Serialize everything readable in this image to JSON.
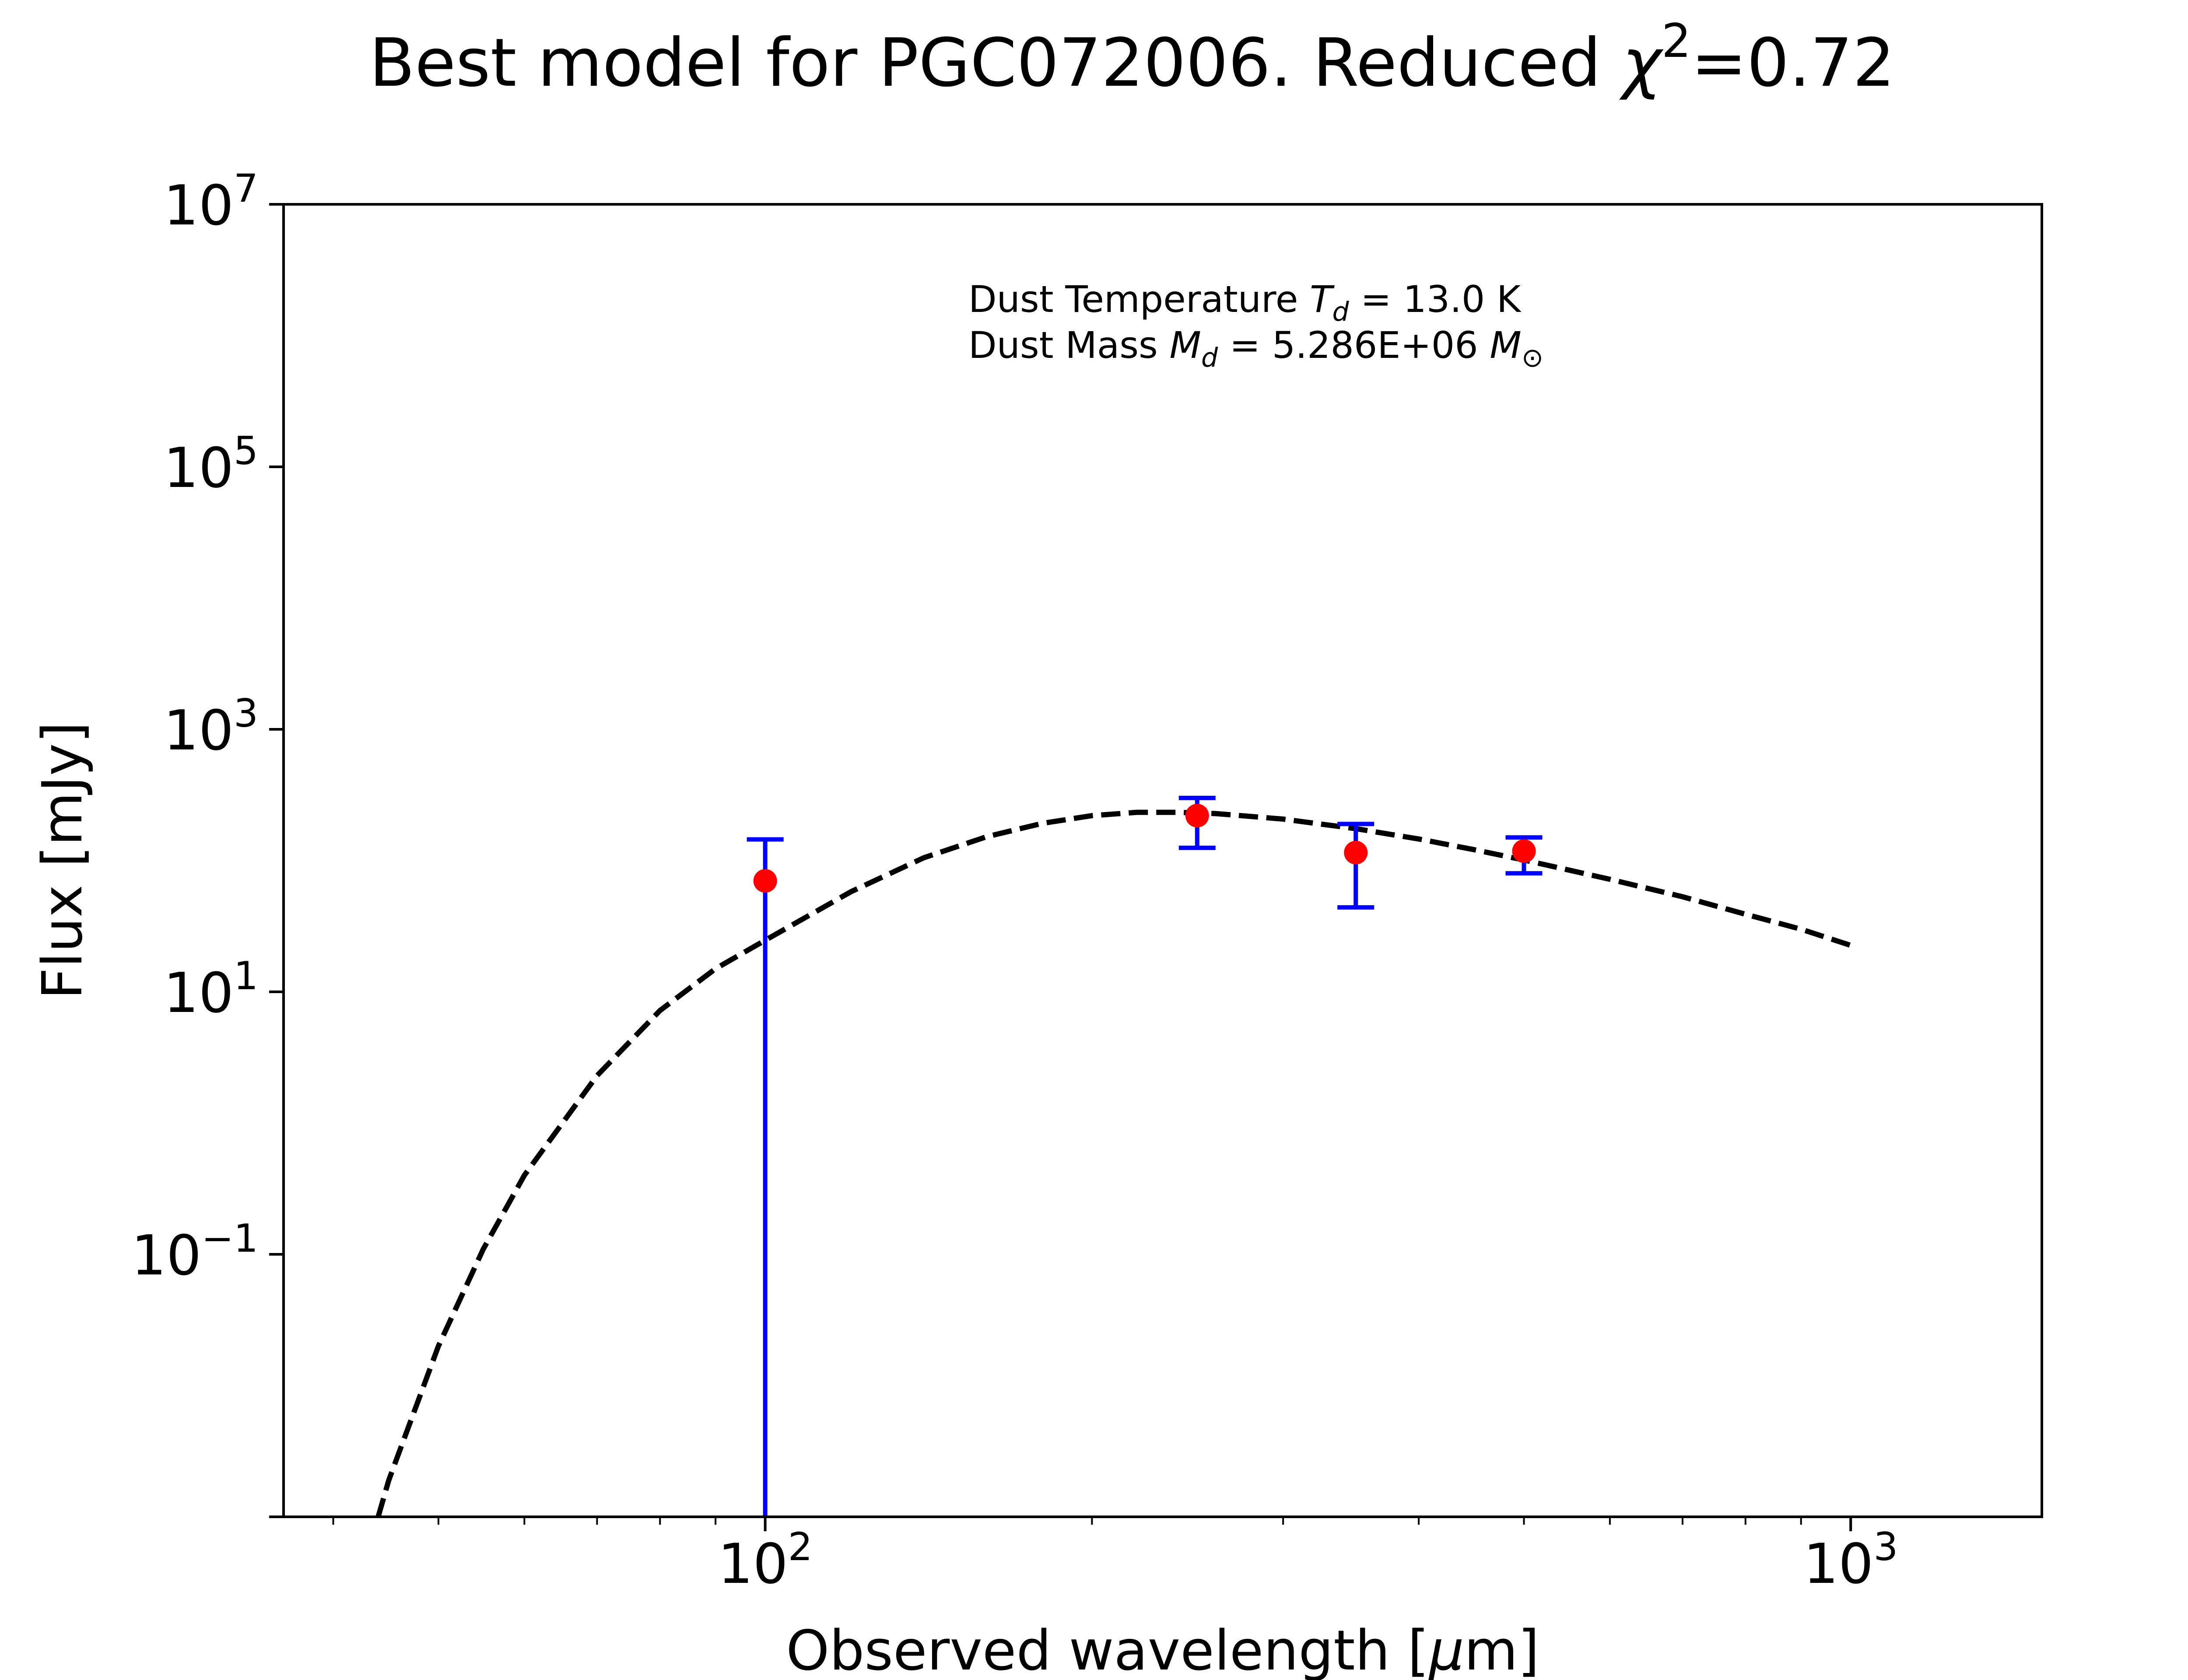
{
  "chart_data": {
    "type": "scatter",
    "title": {
      "prefix": "Best model for PGC072006. Reduced ",
      "chi_symbol": "χ",
      "chi_exponent": "2",
      "suffix": "=0.72"
    },
    "xlabel": {
      "prefix": "Observed wavelength [",
      "mu": "μ",
      "suffix": "m]"
    },
    "ylabel": "Flux [mJy]",
    "x_scale": "log",
    "y_scale": "log",
    "xlim": [
      36,
      1500
    ],
    "ylim": [
      0.001,
      10000000
    ],
    "x_ticks": [
      {
        "value": 100,
        "base": "10",
        "exp": "2"
      },
      {
        "value": 1000,
        "base": "10",
        "exp": "3"
      }
    ],
    "y_ticks": [
      {
        "value": 10000000,
        "base": "10",
        "exp": "7"
      },
      {
        "value": 100000,
        "base": "10",
        "exp": "5"
      },
      {
        "value": 1000,
        "base": "10",
        "exp": "3"
      },
      {
        "value": 10,
        "base": "10",
        "exp": "1"
      },
      {
        "value": 0.1,
        "base": "10",
        "exp": "−1"
      }
    ],
    "grid": false,
    "annotation": {
      "line1": {
        "text": "Dust Temperature ",
        "sym": "T",
        "sub": "d",
        "value": " = 13.0 K"
      },
      "line2": {
        "text": "Dust Mass ",
        "sym": "M",
        "sub": "d",
        "value": " = 5.286E+06 ",
        "unit_sym": "M",
        "unit_sub": "⊙"
      }
    },
    "series": [
      {
        "type": "errorbar",
        "x": [
          100,
          250,
          350,
          500
        ],
        "y": [
          70,
          220,
          115,
          118
        ],
        "yerr_low": [
          70,
          95,
          71,
          38
        ],
        "yerr_high": [
          75,
          80,
          75,
          32
        ]
      },
      {
        "type": "line",
        "style": "dashed",
        "x": [
          44,
          45,
          50,
          55,
          60,
          70,
          80,
          90,
          100,
          120,
          140,
          160,
          180,
          200,
          220,
          240,
          260,
          300,
          350,
          400,
          450,
          500,
          600,
          700,
          800,
          900,
          1000
        ],
        "y": [
          0.001,
          0.0019,
          0.02,
          0.11,
          0.4,
          2.3,
          7.2,
          15,
          24.7,
          58,
          105,
          152,
          192,
          220,
          233,
          233,
          228,
          207,
          175,
          146,
          121,
          101,
          72,
          53,
          39,
          30,
          22.6
        ]
      }
    ],
    "colors": {
      "axis": "#000000",
      "errorbar": "#0000ff",
      "marker": "#ff0000",
      "model": "#000000"
    }
  }
}
